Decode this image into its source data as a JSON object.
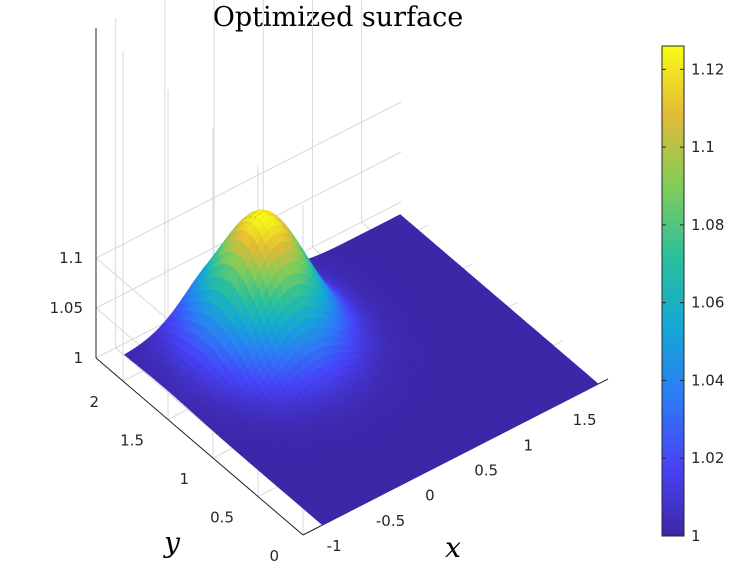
{
  "chart_data": {
    "type": "surface",
    "title": "Optimized surface",
    "xlabel": "x",
    "ylabel": "y",
    "zlabel": "",
    "x_ticks": [
      "-1",
      "-0.5",
      "0",
      "0.5",
      "1",
      "1.5"
    ],
    "y_ticks": [
      "0",
      "0.5",
      "1",
      "1.5",
      "2"
    ],
    "z_ticks": [
      "1",
      "1.05",
      "1.1"
    ],
    "xlim": [
      -1,
      1.8
    ],
    "ylim": [
      0,
      2.2
    ],
    "zlim": [
      1,
      1.13
    ],
    "grid": true,
    "colormap": "parula",
    "colorbar": {
      "range": [
        1,
        1.126
      ],
      "ticks": [
        "1",
        "1.02",
        "1.04",
        "1.06",
        "1.08",
        "1.1",
        "1.12"
      ]
    },
    "surface": {
      "baseline": 1.0,
      "peak_value": 1.126,
      "peak_center": [
        0,
        1.75
      ],
      "peak_width": 0.35
    }
  }
}
